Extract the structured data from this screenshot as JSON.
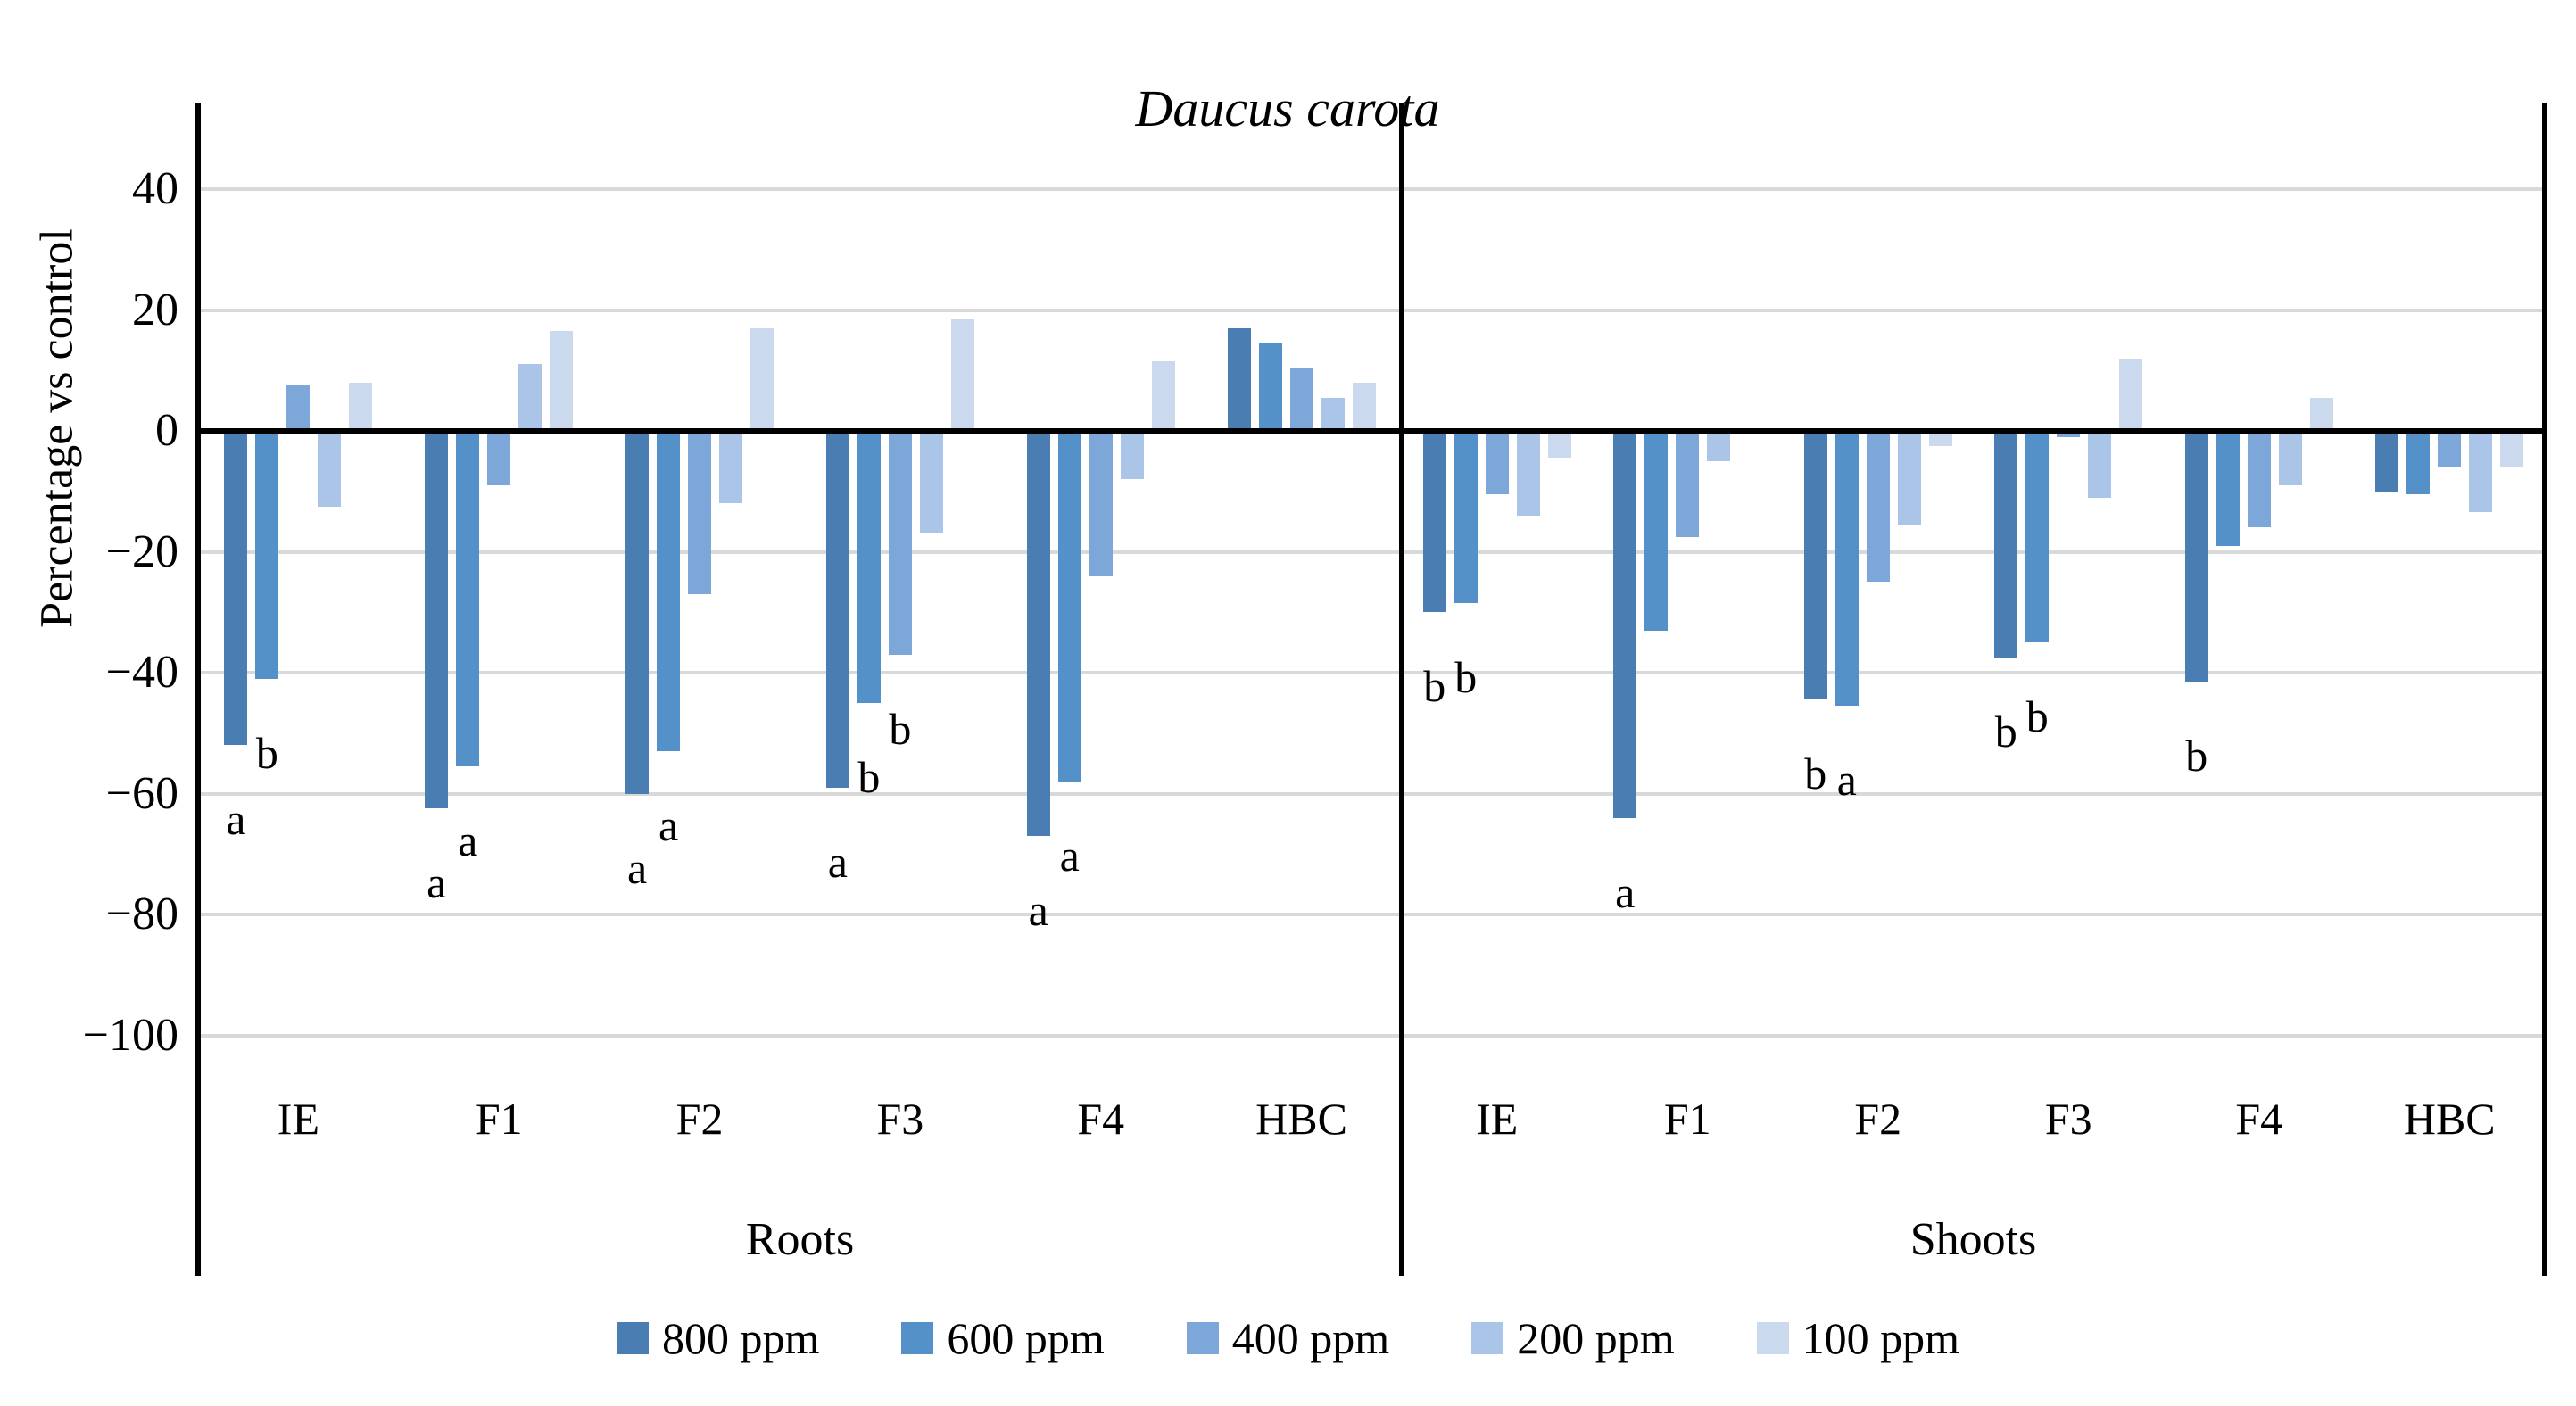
{
  "chart_data": {
    "type": "bar",
    "title": "Daucus carota",
    "ylabel": "Percentage vs control",
    "ylim": [
      -100,
      55
    ],
    "yticks": [
      40,
      20,
      0,
      -20,
      -40,
      -60,
      -80,
      -100
    ],
    "grid": true,
    "legend_position": "bottom",
    "series_names": [
      "800 ppm",
      "600 ppm",
      "400 ppm",
      "200 ppm",
      "100 ppm"
    ],
    "series_colors": [
      "#4a7eb3",
      "#5591c9",
      "#7da7d8",
      "#abc5e8",
      "#cbd9ee"
    ],
    "sections": [
      {
        "label": "Roots",
        "categories": [
          "IE",
          "F1",
          "F2",
          "F3",
          "F4",
          "HBC"
        ],
        "series": [
          {
            "name": "800 ppm",
            "values": [
              -52,
              -62.5,
              -60,
              -59,
              -67,
              17
            ]
          },
          {
            "name": "600 ppm",
            "values": [
              -41,
              -55.5,
              -53,
              -45,
              -58,
              14.5
            ]
          },
          {
            "name": "400 ppm",
            "values": [
              7.5,
              -9,
              -27,
              -37,
              -24,
              10.5
            ]
          },
          {
            "name": "200 ppm",
            "values": [
              -12.5,
              11,
              -12,
              -17,
              -8,
              5.5
            ]
          },
          {
            "name": "100 ppm",
            "values": [
              8,
              16.5,
              17,
              18.5,
              11.5,
              8
            ]
          }
        ],
        "sig_letters": [
          {
            "category": "IE",
            "series": "800 ppm",
            "text": "a"
          },
          {
            "category": "IE",
            "series": "600 ppm",
            "text": "b"
          },
          {
            "category": "F1",
            "series": "800 ppm",
            "text": "a"
          },
          {
            "category": "F1",
            "series": "600 ppm",
            "text": "a"
          },
          {
            "category": "F2",
            "series": "800 ppm",
            "text": "a"
          },
          {
            "category": "F2",
            "series": "600 ppm",
            "text": "a"
          },
          {
            "category": "F3",
            "series": "800 ppm",
            "text": "a"
          },
          {
            "category": "F3",
            "series": "600 ppm",
            "text": "b"
          },
          {
            "category": "F3",
            "series": "400 ppm",
            "text": "b"
          },
          {
            "category": "F4",
            "series": "800 ppm",
            "text": "a"
          },
          {
            "category": "F4",
            "series": "600 ppm",
            "text": "a"
          }
        ]
      },
      {
        "label": "Shoots",
        "categories": [
          "IE",
          "F1",
          "F2",
          "F3",
          "F4",
          "HBC"
        ],
        "series": [
          {
            "name": "800 ppm",
            "values": [
              -30,
              -64,
              -44.5,
              -37.5,
              -41.5,
              -10
            ]
          },
          {
            "name": "600 ppm",
            "values": [
              -28.5,
              -33,
              -45.5,
              -35,
              -19,
              -10.5
            ]
          },
          {
            "name": "400 ppm",
            "values": [
              -10.5,
              -17.5,
              -25,
              -1,
              -16,
              -6
            ]
          },
          {
            "name": "200 ppm",
            "values": [
              -14,
              -5,
              -15.5,
              -11,
              -9,
              -13.5
            ]
          },
          {
            "name": "100 ppm",
            "values": [
              -4.5,
              0,
              -2.5,
              12,
              5.5,
              -6
            ]
          }
        ],
        "sig_letters": [
          {
            "category": "IE",
            "series": "800 ppm",
            "text": "b"
          },
          {
            "category": "IE",
            "series": "600 ppm",
            "text": "b"
          },
          {
            "category": "F1",
            "series": "800 ppm",
            "text": "a"
          },
          {
            "category": "F2",
            "series": "800 ppm",
            "text": "b"
          },
          {
            "category": "F2",
            "series": "600 ppm",
            "text": "a"
          },
          {
            "category": "F3",
            "series": "800 ppm",
            "text": "b"
          },
          {
            "category": "F3",
            "series": "600 ppm",
            "text": "b"
          },
          {
            "category": "F4",
            "series": "800 ppm",
            "text": "b"
          }
        ]
      }
    ]
  }
}
